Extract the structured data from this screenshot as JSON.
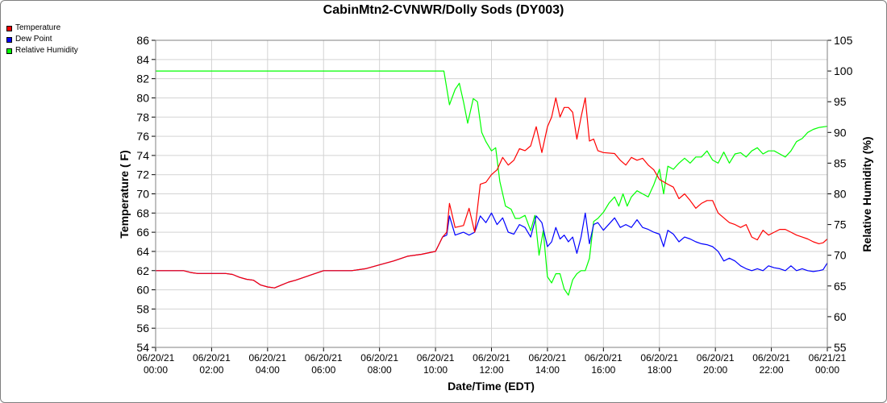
{
  "chart_data": {
    "type": "line",
    "title": "CabinMtn2-CVNWR/Dolly Sods (DY003)",
    "xlabel": "Date/Time (EDT)",
    "ylabel": "Temperature ( F)",
    "y2label": "Relative Humidity (%)",
    "ylim": [
      54,
      86
    ],
    "y2lim": [
      55,
      105
    ],
    "grid": true,
    "legend_position": "top-left",
    "x_ticks": [
      [
        "06/20/21",
        "00:00"
      ],
      [
        "06/20/21",
        "02:00"
      ],
      [
        "06/20/21",
        "04:00"
      ],
      [
        "06/20/21",
        "06:00"
      ],
      [
        "06/20/21",
        "08:00"
      ],
      [
        "06/20/21",
        "10:00"
      ],
      [
        "06/20/21",
        "12:00"
      ],
      [
        "06/20/21",
        "14:00"
      ],
      [
        "06/20/21",
        "16:00"
      ],
      [
        "06/20/21",
        "18:00"
      ],
      [
        "06/20/21",
        "20:00"
      ],
      [
        "06/20/21",
        "22:00"
      ],
      [
        "06/21/21",
        "00:00"
      ]
    ],
    "y_ticks": [
      54,
      56,
      58,
      60,
      62,
      64,
      66,
      68,
      70,
      72,
      74,
      76,
      78,
      80,
      82,
      84,
      86
    ],
    "y2_ticks": [
      55,
      60,
      65,
      70,
      75,
      80,
      85,
      90,
      95,
      100,
      105
    ],
    "series": [
      {
        "name": "Temperature",
        "color": "#ff0000",
        "axis": "left",
        "points": [
          [
            0.0,
            62.0
          ],
          [
            0.5,
            62.0
          ],
          [
            1.0,
            62.0
          ],
          [
            1.25,
            61.8
          ],
          [
            1.5,
            61.7
          ],
          [
            2.0,
            61.7
          ],
          [
            2.5,
            61.7
          ],
          [
            2.75,
            61.6
          ],
          [
            3.0,
            61.3
          ],
          [
            3.25,
            61.1
          ],
          [
            3.5,
            61.0
          ],
          [
            3.75,
            60.5
          ],
          [
            4.0,
            60.3
          ],
          [
            4.25,
            60.2
          ],
          [
            4.5,
            60.5
          ],
          [
            4.75,
            60.8
          ],
          [
            5.0,
            61.0
          ],
          [
            5.5,
            61.5
          ],
          [
            6.0,
            62.0
          ],
          [
            6.5,
            62.0
          ],
          [
            7.0,
            62.0
          ],
          [
            7.5,
            62.2
          ],
          [
            8.0,
            62.6
          ],
          [
            8.5,
            63.0
          ],
          [
            9.0,
            63.5
          ],
          [
            9.5,
            63.7
          ],
          [
            10.0,
            64.0
          ],
          [
            10.25,
            65.5
          ],
          [
            10.4,
            66.0
          ],
          [
            10.5,
            69.0
          ],
          [
            10.7,
            66.5
          ],
          [
            11.0,
            66.7
          ],
          [
            11.2,
            68.5
          ],
          [
            11.4,
            66.0
          ],
          [
            11.6,
            71.0
          ],
          [
            11.8,
            71.2
          ],
          [
            12.0,
            72.0
          ],
          [
            12.2,
            72.5
          ],
          [
            12.4,
            73.8
          ],
          [
            12.6,
            73.0
          ],
          [
            12.8,
            73.5
          ],
          [
            13.0,
            74.7
          ],
          [
            13.2,
            74.5
          ],
          [
            13.4,
            75.0
          ],
          [
            13.6,
            77.0
          ],
          [
            13.8,
            74.3
          ],
          [
            14.0,
            77.0
          ],
          [
            14.15,
            78.0
          ],
          [
            14.3,
            80.0
          ],
          [
            14.45,
            78.0
          ],
          [
            14.6,
            79.0
          ],
          [
            14.75,
            79.0
          ],
          [
            14.9,
            78.5
          ],
          [
            15.05,
            75.7
          ],
          [
            15.2,
            78.0
          ],
          [
            15.35,
            80.0
          ],
          [
            15.5,
            75.5
          ],
          [
            15.65,
            75.7
          ],
          [
            15.8,
            74.5
          ],
          [
            16.0,
            74.3
          ],
          [
            16.4,
            74.2
          ],
          [
            16.6,
            73.5
          ],
          [
            16.8,
            73.0
          ],
          [
            17.0,
            73.8
          ],
          [
            17.2,
            73.5
          ],
          [
            17.4,
            73.7
          ],
          [
            17.6,
            73.0
          ],
          [
            17.8,
            72.5
          ],
          [
            18.0,
            71.5
          ],
          [
            18.3,
            71.0
          ],
          [
            18.5,
            70.7
          ],
          [
            18.7,
            69.5
          ],
          [
            18.9,
            70.0
          ],
          [
            19.1,
            69.3
          ],
          [
            19.3,
            68.5
          ],
          [
            19.5,
            69.0
          ],
          [
            19.7,
            69.3
          ],
          [
            19.9,
            69.3
          ],
          [
            20.1,
            68.0
          ],
          [
            20.3,
            67.5
          ],
          [
            20.5,
            67.0
          ],
          [
            20.7,
            66.8
          ],
          [
            20.9,
            66.5
          ],
          [
            21.1,
            66.8
          ],
          [
            21.3,
            65.5
          ],
          [
            21.5,
            65.2
          ],
          [
            21.7,
            66.2
          ],
          [
            21.9,
            65.7
          ],
          [
            22.1,
            66.0
          ],
          [
            22.3,
            66.3
          ],
          [
            22.5,
            66.3
          ],
          [
            22.7,
            66.0
          ],
          [
            22.9,
            65.7
          ],
          [
            23.1,
            65.5
          ],
          [
            23.3,
            65.3
          ],
          [
            23.5,
            65.0
          ],
          [
            23.7,
            64.8
          ],
          [
            23.85,
            64.9
          ],
          [
            24.0,
            65.3
          ]
        ]
      },
      {
        "name": "Dew Point",
        "color": "#0000ff",
        "axis": "left",
        "points": [
          [
            0.0,
            62.0
          ],
          [
            0.5,
            62.0
          ],
          [
            1.0,
            62.0
          ],
          [
            1.25,
            61.8
          ],
          [
            1.5,
            61.7
          ],
          [
            2.0,
            61.7
          ],
          [
            2.5,
            61.7
          ],
          [
            2.75,
            61.6
          ],
          [
            3.0,
            61.3
          ],
          [
            3.25,
            61.1
          ],
          [
            3.5,
            61.0
          ],
          [
            3.75,
            60.5
          ],
          [
            4.0,
            60.3
          ],
          [
            4.25,
            60.2
          ],
          [
            4.5,
            60.5
          ],
          [
            4.75,
            60.8
          ],
          [
            5.0,
            61.0
          ],
          [
            5.5,
            61.5
          ],
          [
            6.0,
            62.0
          ],
          [
            6.5,
            62.0
          ],
          [
            7.0,
            62.0
          ],
          [
            7.5,
            62.2
          ],
          [
            8.0,
            62.6
          ],
          [
            8.5,
            63.0
          ],
          [
            9.0,
            63.5
          ],
          [
            9.5,
            63.7
          ],
          [
            10.0,
            64.0
          ],
          [
            10.25,
            65.5
          ],
          [
            10.4,
            65.7
          ],
          [
            10.5,
            67.7
          ],
          [
            10.7,
            65.7
          ],
          [
            11.0,
            66.0
          ],
          [
            11.2,
            65.7
          ],
          [
            11.4,
            66.0
          ],
          [
            11.6,
            67.7
          ],
          [
            11.8,
            67.0
          ],
          [
            12.0,
            68.0
          ],
          [
            12.2,
            66.8
          ],
          [
            12.4,
            67.5
          ],
          [
            12.6,
            66.0
          ],
          [
            12.8,
            65.8
          ],
          [
            13.0,
            66.8
          ],
          [
            13.2,
            66.5
          ],
          [
            13.4,
            65.5
          ],
          [
            13.6,
            67.7
          ],
          [
            13.8,
            67.0
          ],
          [
            14.0,
            64.5
          ],
          [
            14.15,
            65.0
          ],
          [
            14.3,
            66.5
          ],
          [
            14.45,
            65.3
          ],
          [
            14.6,
            65.7
          ],
          [
            14.75,
            65.0
          ],
          [
            14.9,
            65.5
          ],
          [
            15.05,
            63.8
          ],
          [
            15.2,
            65.5
          ],
          [
            15.35,
            68.0
          ],
          [
            15.5,
            64.8
          ],
          [
            15.65,
            66.8
          ],
          [
            15.8,
            67.0
          ],
          [
            16.0,
            66.2
          ],
          [
            16.4,
            67.5
          ],
          [
            16.6,
            66.5
          ],
          [
            16.8,
            66.8
          ],
          [
            17.0,
            66.5
          ],
          [
            17.2,
            67.3
          ],
          [
            17.4,
            66.5
          ],
          [
            17.6,
            66.3
          ],
          [
            17.8,
            66.0
          ],
          [
            18.0,
            65.8
          ],
          [
            18.15,
            64.5
          ],
          [
            18.3,
            66.2
          ],
          [
            18.5,
            65.8
          ],
          [
            18.7,
            65.0
          ],
          [
            18.9,
            65.5
          ],
          [
            19.1,
            65.3
          ],
          [
            19.3,
            65.0
          ],
          [
            19.5,
            64.8
          ],
          [
            19.7,
            64.7
          ],
          [
            19.9,
            64.5
          ],
          [
            20.1,
            64.0
          ],
          [
            20.3,
            63.0
          ],
          [
            20.5,
            63.3
          ],
          [
            20.7,
            63.0
          ],
          [
            20.9,
            62.5
          ],
          [
            21.1,
            62.2
          ],
          [
            21.3,
            62.0
          ],
          [
            21.5,
            62.2
          ],
          [
            21.7,
            62.0
          ],
          [
            21.9,
            62.5
          ],
          [
            22.1,
            62.3
          ],
          [
            22.3,
            62.2
          ],
          [
            22.5,
            62.0
          ],
          [
            22.7,
            62.5
          ],
          [
            22.9,
            62.0
          ],
          [
            23.1,
            62.2
          ],
          [
            23.3,
            62.0
          ],
          [
            23.5,
            61.9
          ],
          [
            23.7,
            62.0
          ],
          [
            23.85,
            62.1
          ],
          [
            24.0,
            62.8
          ]
        ]
      },
      {
        "name": "Relative Humidity",
        "color": "#00ff00",
        "axis": "right",
        "points": [
          [
            0.0,
            100.0
          ],
          [
            10.3,
            100.0
          ],
          [
            10.5,
            94.5
          ],
          [
            10.7,
            97.0
          ],
          [
            10.85,
            98.0
          ],
          [
            11.0,
            95.0
          ],
          [
            11.15,
            91.5
          ],
          [
            11.35,
            95.5
          ],
          [
            11.5,
            95.0
          ],
          [
            11.65,
            90.0
          ],
          [
            11.8,
            88.5
          ],
          [
            12.0,
            87.0
          ],
          [
            12.15,
            87.5
          ],
          [
            12.3,
            82.0
          ],
          [
            12.5,
            78.0
          ],
          [
            12.7,
            77.5
          ],
          [
            12.85,
            76.0
          ],
          [
            13.0,
            76.0
          ],
          [
            13.2,
            76.5
          ],
          [
            13.4,
            74.0
          ],
          [
            13.55,
            76.5
          ],
          [
            13.7,
            70.0
          ],
          [
            13.85,
            74.0
          ],
          [
            14.0,
            66.5
          ],
          [
            14.15,
            65.5
          ],
          [
            14.3,
            67.0
          ],
          [
            14.45,
            67.0
          ],
          [
            14.6,
            64.5
          ],
          [
            14.75,
            63.5
          ],
          [
            14.9,
            66.0
          ],
          [
            15.05,
            67.0
          ],
          [
            15.2,
            67.5
          ],
          [
            15.35,
            67.5
          ],
          [
            15.5,
            69.5
          ],
          [
            15.65,
            75.5
          ],
          [
            15.8,
            76.0
          ],
          [
            16.0,
            77.0
          ],
          [
            16.2,
            78.5
          ],
          [
            16.4,
            79.5
          ],
          [
            16.55,
            78.0
          ],
          [
            16.7,
            80.0
          ],
          [
            16.85,
            78.0
          ],
          [
            17.0,
            79.5
          ],
          [
            17.2,
            80.5
          ],
          [
            17.4,
            80.0
          ],
          [
            17.6,
            79.5
          ],
          [
            17.8,
            81.5
          ],
          [
            18.0,
            84.0
          ],
          [
            18.15,
            80.0
          ],
          [
            18.3,
            84.5
          ],
          [
            18.5,
            84.0
          ],
          [
            18.7,
            85.0
          ],
          [
            18.9,
            85.8
          ],
          [
            19.1,
            85.0
          ],
          [
            19.3,
            86.0
          ],
          [
            19.5,
            86.0
          ],
          [
            19.7,
            87.0
          ],
          [
            19.9,
            85.5
          ],
          [
            20.1,
            85.0
          ],
          [
            20.3,
            86.8
          ],
          [
            20.5,
            85.0
          ],
          [
            20.7,
            86.5
          ],
          [
            20.9,
            86.7
          ],
          [
            21.1,
            86.0
          ],
          [
            21.3,
            87.0
          ],
          [
            21.5,
            87.5
          ],
          [
            21.7,
            86.5
          ],
          [
            21.9,
            87.0
          ],
          [
            22.1,
            87.0
          ],
          [
            22.3,
            86.5
          ],
          [
            22.5,
            86.0
          ],
          [
            22.7,
            87.0
          ],
          [
            22.9,
            88.5
          ],
          [
            23.1,
            89.0
          ],
          [
            23.3,
            90.0
          ],
          [
            23.5,
            90.5
          ],
          [
            23.7,
            90.8
          ],
          [
            24.0,
            91.0
          ]
        ]
      }
    ]
  }
}
